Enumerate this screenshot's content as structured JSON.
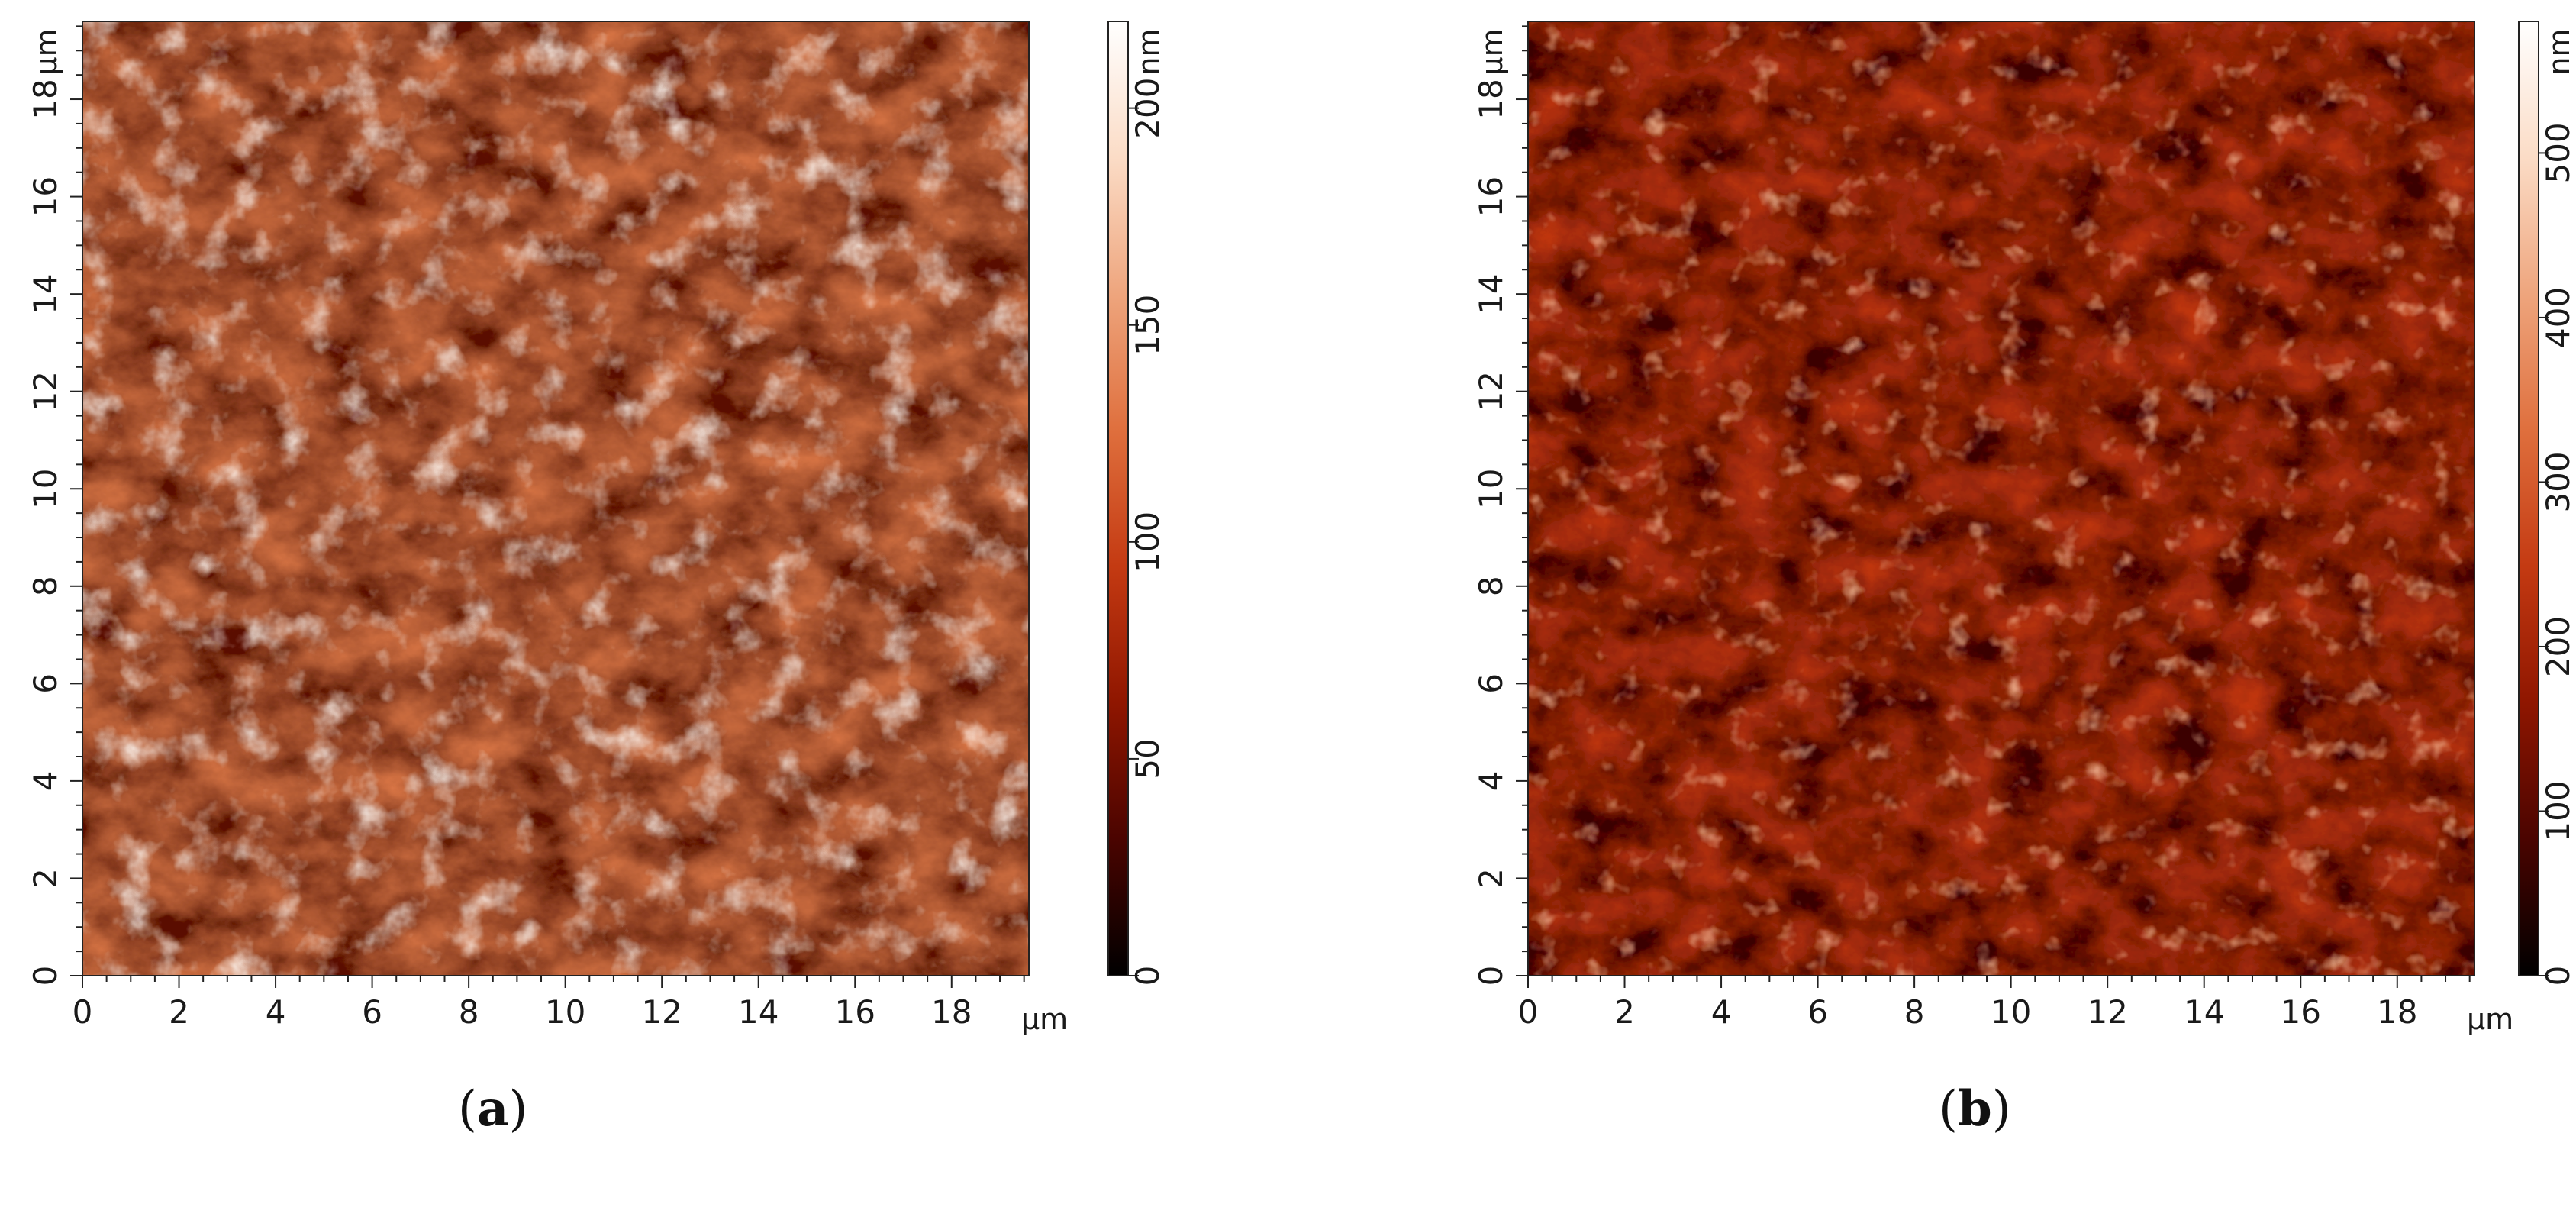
{
  "panels": [
    {
      "caption_open": "(",
      "caption_letter": "a",
      "caption_close": ")",
      "x_ticks": [
        "0",
        "2",
        "4",
        "6",
        "8",
        "10",
        "12",
        "14",
        "16",
        "18"
      ],
      "y_ticks": [
        "0",
        "2",
        "4",
        "6",
        "8",
        "10",
        "12",
        "14",
        "16",
        "18"
      ],
      "x_unit": "µm",
      "y_unit": "µm",
      "scale_unit": "nm",
      "scale_ticks": [
        "0",
        "50",
        "100",
        "150",
        "200"
      ],
      "scale_range": [
        0,
        220
      ],
      "colormap": [
        "#000000",
        "#4a0400",
        "#8f1600",
        "#c43a12",
        "#df6f3d",
        "#eea57d",
        "#fbdcc6",
        "#ffffff"
      ],
      "surface_brightness": 0.62
    },
    {
      "caption_open": "(",
      "caption_letter": "b",
      "caption_close": ")",
      "x_ticks": [
        "0",
        "2",
        "4",
        "6",
        "8",
        "10",
        "12",
        "14",
        "16",
        "18"
      ],
      "y_ticks": [
        "0",
        "2",
        "4",
        "6",
        "8",
        "10",
        "12",
        "14",
        "16",
        "18"
      ],
      "x_unit": "µm",
      "y_unit": "µm",
      "scale_unit": "nm",
      "scale_ticks": [
        "0",
        "100",
        "200",
        "300",
        "400",
        "500"
      ],
      "scale_range": [
        0,
        580
      ],
      "colormap": [
        "#000000",
        "#4a0400",
        "#8f1600",
        "#c43a12",
        "#df6f3d",
        "#eea57d",
        "#fbdcc6",
        "#ffffff"
      ],
      "surface_brightness": 0.42
    }
  ]
}
